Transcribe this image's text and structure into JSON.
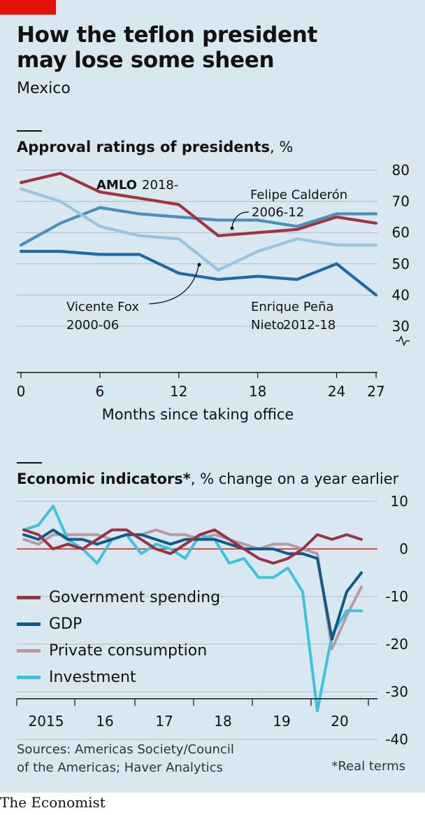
{
  "header": {
    "title": "How the teflon president\nmay lose some sheen",
    "subtitle": "Mexico"
  },
  "colors": {
    "accent": "#e3120b",
    "amlo": "#a0333f",
    "calderon": "#4a90b8",
    "fox": "#98c4dc",
    "pena_nieto": "#1c6aa8",
    "gov_spending": "#983344",
    "gdp": "#105a85",
    "private_consumption": "#b89aa5",
    "investment": "#3ec3dc",
    "zero_line": "#e3120b"
  },
  "chart_data": [
    {
      "type": "line",
      "title": "Approval ratings of presidents",
      "unit": "%",
      "xlabel": "Months since taking office",
      "xticks": [
        0,
        6,
        12,
        18,
        24,
        27
      ],
      "yticks": [
        30,
        40,
        50,
        60,
        70,
        80
      ],
      "xlim": [
        0,
        27
      ],
      "ylim": [
        26,
        80
      ],
      "axis_break": true,
      "grid": true,
      "series": [
        {
          "name": "AMLO",
          "label_suffix": "2018-",
          "color_key": "amlo",
          "x": [
            0,
            3,
            6,
            9,
            12,
            15,
            18,
            21,
            24,
            27
          ],
          "values": [
            76,
            79,
            73,
            71,
            69,
            59,
            60,
            61,
            65,
            63
          ]
        },
        {
          "name": "Felipe Calderón",
          "label_suffix": "2006-12",
          "color_key": "calderon",
          "x": [
            0,
            3,
            6,
            9,
            12,
            15,
            18,
            21,
            24,
            27
          ],
          "values": [
            56,
            63,
            68,
            66,
            65,
            64,
            64,
            62,
            66,
            66
          ]
        },
        {
          "name": "Vicente Fox",
          "label_suffix": "2000-06",
          "color_key": "fox",
          "x": [
            0,
            3,
            6,
            9,
            12,
            15,
            18,
            21,
            24,
            27
          ],
          "values": [
            74,
            70,
            62,
            59,
            58,
            48,
            54,
            58,
            56,
            56
          ]
        },
        {
          "name": "Enrique Peña Nieto",
          "label_suffix": "2012-18",
          "color_key": "pena_nieto",
          "x": [
            0,
            3,
            6,
            9,
            12,
            15,
            18,
            21,
            24,
            27
          ],
          "values": [
            54,
            54,
            53,
            53,
            47,
            45,
            46,
            45,
            50,
            40
          ]
        }
      ],
      "annotations": {
        "amlo_name": "AMLO",
        "amlo_years": "2018-",
        "calderon_name": "Felipe Calderón",
        "calderon_years": "2006-12",
        "fox_name": "Vicente Fox",
        "fox_years": "2000-06",
        "pena_name": "Enrique Peña",
        "pena_name2": "Nieto",
        "pena_years": "2012-18"
      }
    },
    {
      "type": "line",
      "title": "Economic indicators*",
      "unit": "% change on a year earlier",
      "xticks": [
        "2015",
        "16",
        "17",
        "18",
        "19",
        "20"
      ],
      "yticks": [
        10,
        0,
        -10,
        -20,
        -30,
        -40
      ],
      "ylim": [
        -40,
        10
      ],
      "xlim": [
        2015.0,
        2020.75
      ],
      "legend_position": "bottom-left",
      "x": [
        2015.0,
        2015.25,
        2015.5,
        2015.75,
        2016.0,
        2016.25,
        2016.5,
        2016.75,
        2017.0,
        2017.25,
        2017.5,
        2017.75,
        2018.0,
        2018.25,
        2018.5,
        2018.75,
        2019.0,
        2019.25,
        2019.5,
        2019.75,
        2020.0,
        2020.25,
        2020.5,
        2020.75
      ],
      "series": [
        {
          "name": "Government spending",
          "color_key": "gov_spending",
          "values": [
            4,
            3,
            0,
            1,
            0,
            2,
            4,
            4,
            2,
            0,
            -1,
            1,
            3,
            4,
            2,
            0,
            -2,
            -3,
            -2,
            0,
            3,
            2,
            3,
            2
          ]
        },
        {
          "name": "GDP",
          "color_key": "gdp",
          "values": [
            3,
            2,
            4,
            2,
            2,
            1,
            2,
            3,
            3,
            2,
            1,
            2,
            2,
            2,
            1,
            0,
            0,
            0,
            -1,
            -1,
            -2,
            -19,
            -9,
            -5
          ]
        },
        {
          "name": "Private consumption",
          "color_key": "private_consumption",
          "values": [
            2,
            1,
            3,
            3,
            3,
            3,
            2,
            3,
            3,
            4,
            3,
            3,
            2,
            3,
            2,
            1,
            0,
            1,
            1,
            0,
            -1,
            -21,
            -14,
            -8
          ]
        },
        {
          "name": "Investment",
          "color_key": "investment",
          "values": [
            4,
            5,
            9,
            2,
            0,
            -3,
            2,
            3,
            -1,
            1,
            0,
            -2,
            3,
            2,
            -3,
            -2,
            -6,
            -6,
            -4,
            -9,
            -34,
            -18,
            -13,
            -13
          ]
        }
      ]
    }
  ],
  "footer": {
    "sources": "Sources: Americas Society/Council of the Americas; Haver Analytics",
    "note": "*Real terms",
    "brand": "The Economist"
  }
}
